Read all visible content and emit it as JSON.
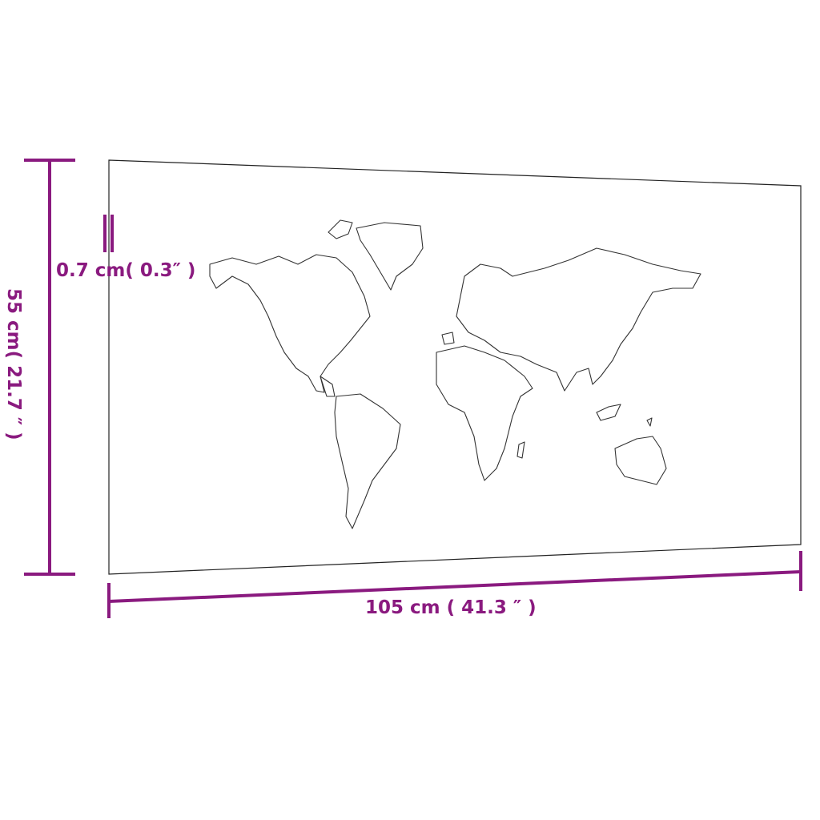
{
  "colors": {
    "dimension": "#8a1a7f",
    "outline": "#222222"
  },
  "dimensions": {
    "width_label": "105 cm ( 41.3 ″ )",
    "height_label": "55 cm( 21.7 ″ )",
    "thickness_label": "0.7 cm( 0.3″ )"
  }
}
